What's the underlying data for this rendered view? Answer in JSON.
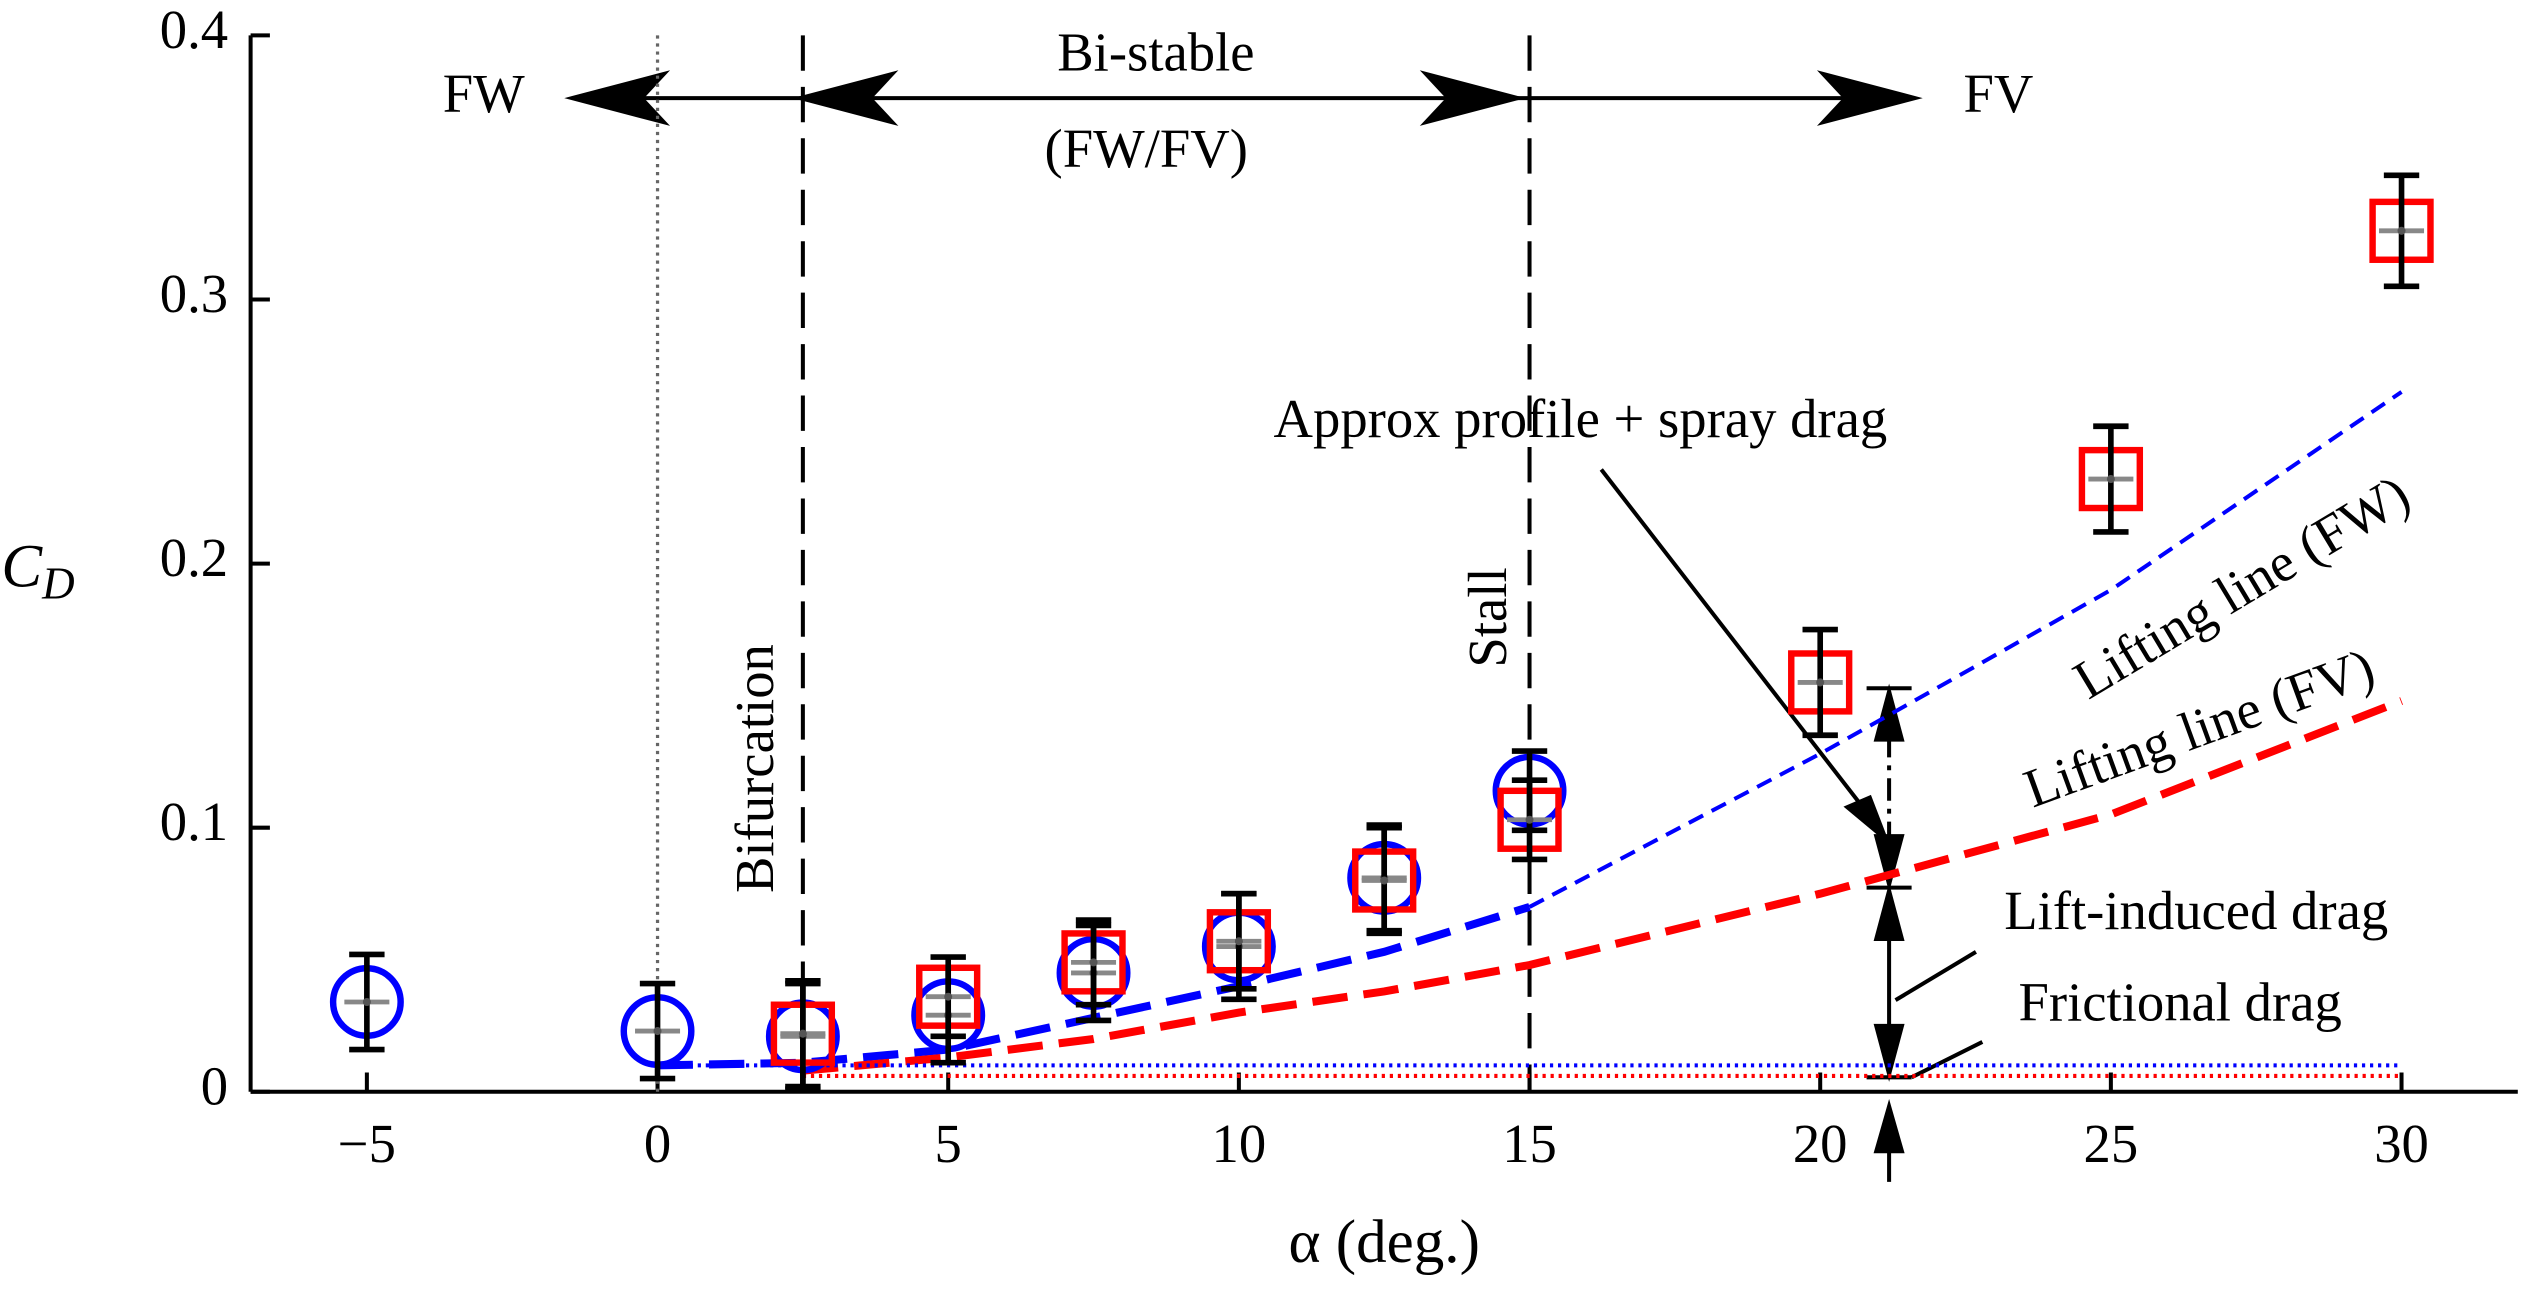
{
  "chart_data": {
    "type": "scatter",
    "xlabel": "α (deg.)",
    "ylabel": "C",
    "ylabel_sub": "D",
    "xlim": [
      -7,
      32
    ],
    "ylim": [
      0,
      0.4
    ],
    "xticks": [
      {
        "value": -5,
        "label": "−5"
      },
      0,
      5,
      10,
      15,
      20,
      25,
      30
    ],
    "yticks": [
      0,
      0.1,
      0.2,
      0.3,
      0.4
    ],
    "series": [
      {
        "marker": "circle",
        "color": "#0000ff",
        "x": [
          -5,
          0,
          2.5,
          5,
          7.5,
          10,
          12.5,
          15
        ],
        "values": [
          0.034,
          0.023,
          0.021,
          0.029,
          0.045,
          0.055,
          0.081,
          0.114
        ],
        "errors": [
          0.018,
          0.018,
          0.02,
          0.018,
          0.018,
          0.02,
          0.02,
          0.015
        ]
      },
      {
        "marker": "square",
        "color": "#ff0000",
        "x": [
          2.5,
          5,
          7.5,
          10,
          12.5,
          15,
          20,
          25,
          30
        ],
        "values": [
          0.022,
          0.036,
          0.049,
          0.057,
          0.08,
          0.103,
          0.155,
          0.232,
          0.326
        ],
        "errors": [
          0.02,
          0.015,
          0.016,
          0.018,
          0.02,
          0.015,
          0.02,
          0.02,
          0.021
        ]
      }
    ],
    "lines": [
      {
        "color": "#0000ff",
        "style": "dashed-thick",
        "x": [
          0,
          2.5,
          5,
          7.5,
          10,
          12.5,
          15
        ],
        "values": [
          0.01,
          0.011,
          0.016,
          0.028,
          0.04,
          0.053,
          0.07
        ]
      },
      {
        "color": "#0000ff",
        "style": "dashed-thin",
        "x": [
          15,
          20,
          25,
          30
        ],
        "values": [
          0.07,
          0.128,
          0.19,
          0.265
        ]
      },
      {
        "color": "#ff0000",
        "style": "dashed-thick",
        "x": [
          2.5,
          5,
          7.5,
          10,
          12.5,
          15,
          20,
          25,
          30
        ],
        "values": [
          0.008,
          0.013,
          0.02,
          0.03,
          0.038,
          0.048,
          0.075,
          0.105,
          0.148
        ]
      },
      {
        "color": "#0000ff",
        "style": "dotted",
        "x": [
          0,
          30
        ],
        "values": [
          0.01,
          0.01
        ]
      },
      {
        "color": "#ff0000",
        "style": "dotted",
        "x": [
          2.5,
          30
        ],
        "values": [
          0.006,
          0.006
        ]
      }
    ],
    "vlines": [
      {
        "x": 0,
        "style": "dotted"
      },
      {
        "x": 2.5,
        "style": "dashed"
      },
      {
        "x": 15,
        "style": "dashed"
      }
    ],
    "annotations": [
      "FW",
      "Bi-stable",
      "(FW/FV)",
      "FV",
      "Bifurcation",
      "Stall",
      "Approx profile + spray drag",
      "Lifting line (FW)",
      "Lifting line (FV)",
      "Lift-induced drag",
      "Frictional drag"
    ]
  }
}
